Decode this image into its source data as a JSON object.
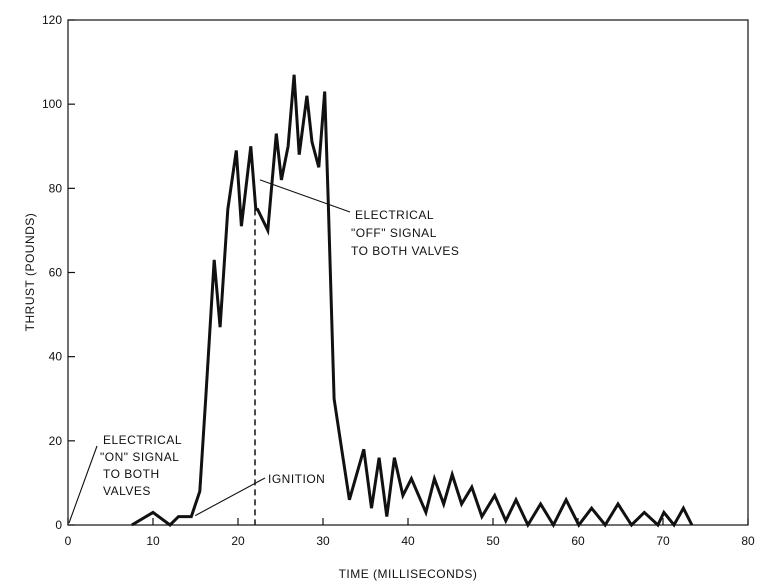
{
  "chart_data": {
    "type": "line",
    "title": "",
    "xlabel": "TIME (MILLISECONDS)",
    "ylabel": "THRUST (POUNDS)",
    "xlim": [
      0,
      80
    ],
    "ylim": [
      0,
      120
    ],
    "xticks": [
      0,
      10,
      20,
      30,
      40,
      50,
      60,
      70,
      80
    ],
    "yticks": [
      0,
      20,
      40,
      60,
      80,
      100,
      120
    ],
    "grid": false,
    "legend": "none",
    "line_color": "#111111",
    "series": [
      {
        "x": [
          7.5,
          10,
          12,
          13,
          14.5,
          15.5,
          16.2,
          17.2,
          17.9,
          18.8,
          19.8,
          20.4,
          21.5,
          22.1,
          22.3,
          23.5,
          24.5,
          25.1,
          25.9,
          26.6,
          27.2,
          28.1,
          28.7,
          29.5,
          30.2,
          30.6,
          31.3,
          32.2,
          33.1,
          34.8,
          35.7,
          36.6,
          37.5,
          38.4,
          39.4,
          40.4,
          42.1,
          43.1,
          44.2,
          45.2,
          46.3,
          47.5,
          48.7,
          50.2,
          51.5,
          52.7,
          54.1,
          55.6,
          57.1,
          58.6,
          60.1,
          61.6,
          63.2,
          64.7,
          66.3,
          67.8,
          69.4,
          70.1,
          71.3,
          72.4,
          73.4
        ],
        "y": [
          0,
          3,
          0,
          2,
          2,
          8,
          30,
          63,
          47,
          75,
          89,
          71,
          90,
          75,
          75,
          70,
          93,
          82,
          90,
          107,
          88,
          102,
          91,
          85,
          103,
          78,
          30,
          18,
          6,
          18,
          4,
          16,
          2,
          16,
          7,
          11,
          3,
          11,
          5,
          12,
          5,
          9,
          2,
          7,
          1,
          6,
          0,
          5,
          0,
          6,
          0,
          4,
          0,
          5,
          0,
          3,
          0,
          3,
          0,
          4,
          0
        ]
      }
    ],
    "annotations": [
      {
        "lines": [
          "ELECTRICAL",
          "\"OFF\" SIGNAL",
          "TO BOTH VALVES"
        ],
        "x": 22,
        "y": 82
      },
      {
        "lines": [
          "ELECTRICAL",
          "\"ON\" SIGNAL",
          "TO BOTH",
          "VALVES"
        ],
        "x": 0,
        "y": 0
      },
      {
        "lines": [
          "IGNITION"
        ],
        "x": 14.5,
        "y": 2
      }
    ],
    "off_signal_marker_x": 22
  }
}
